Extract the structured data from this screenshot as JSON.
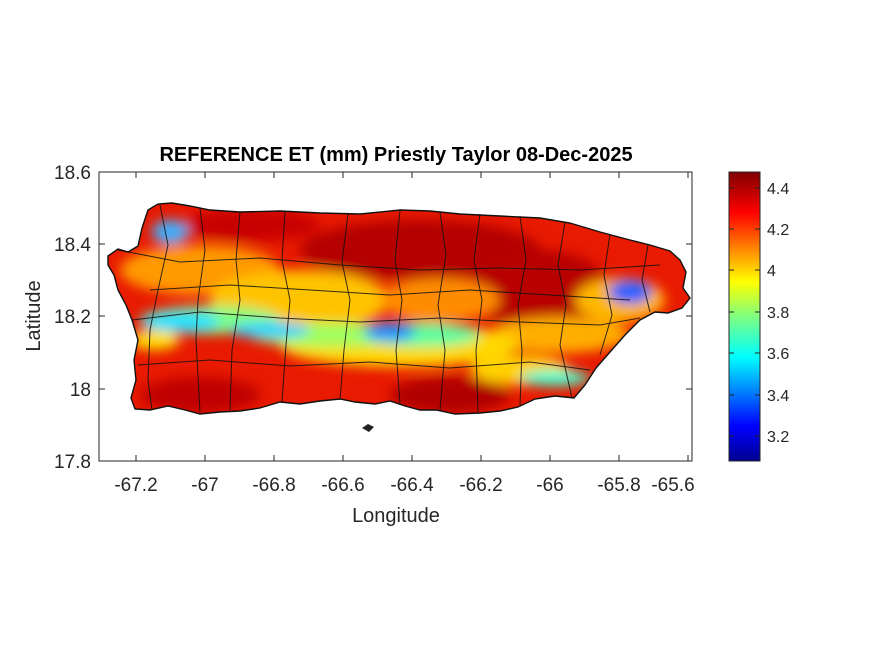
{
  "chart_data": {
    "type": "heatmap",
    "title": "REFERENCE ET (mm) Priestly Taylor 08-Dec-2025",
    "xlabel": "Longitude",
    "ylabel": "Latitude",
    "xlim": [
      -67.3,
      -65.58
    ],
    "ylim": [
      17.8,
      18.6
    ],
    "xticks": [
      "-67.2",
      "-67",
      "-66.8",
      "-66.6",
      "-66.4",
      "-66.2",
      "-66",
      "-65.8",
      "-65.6"
    ],
    "yticks": [
      "18.6",
      "18.4",
      "18.2",
      "18",
      "17.8"
    ],
    "colorbar": {
      "colormap": "jet",
      "range": [
        3.05,
        4.5
      ],
      "ticks": [
        "4.4",
        "4.2",
        "4",
        "3.8",
        "3.6",
        "3.4",
        "3.2"
      ]
    },
    "grid": false,
    "description_values": {
      "high_region": "north and east coast, central interior ~4.3-4.5",
      "low_region": "central cordillera band ~3.4-3.8"
    }
  }
}
